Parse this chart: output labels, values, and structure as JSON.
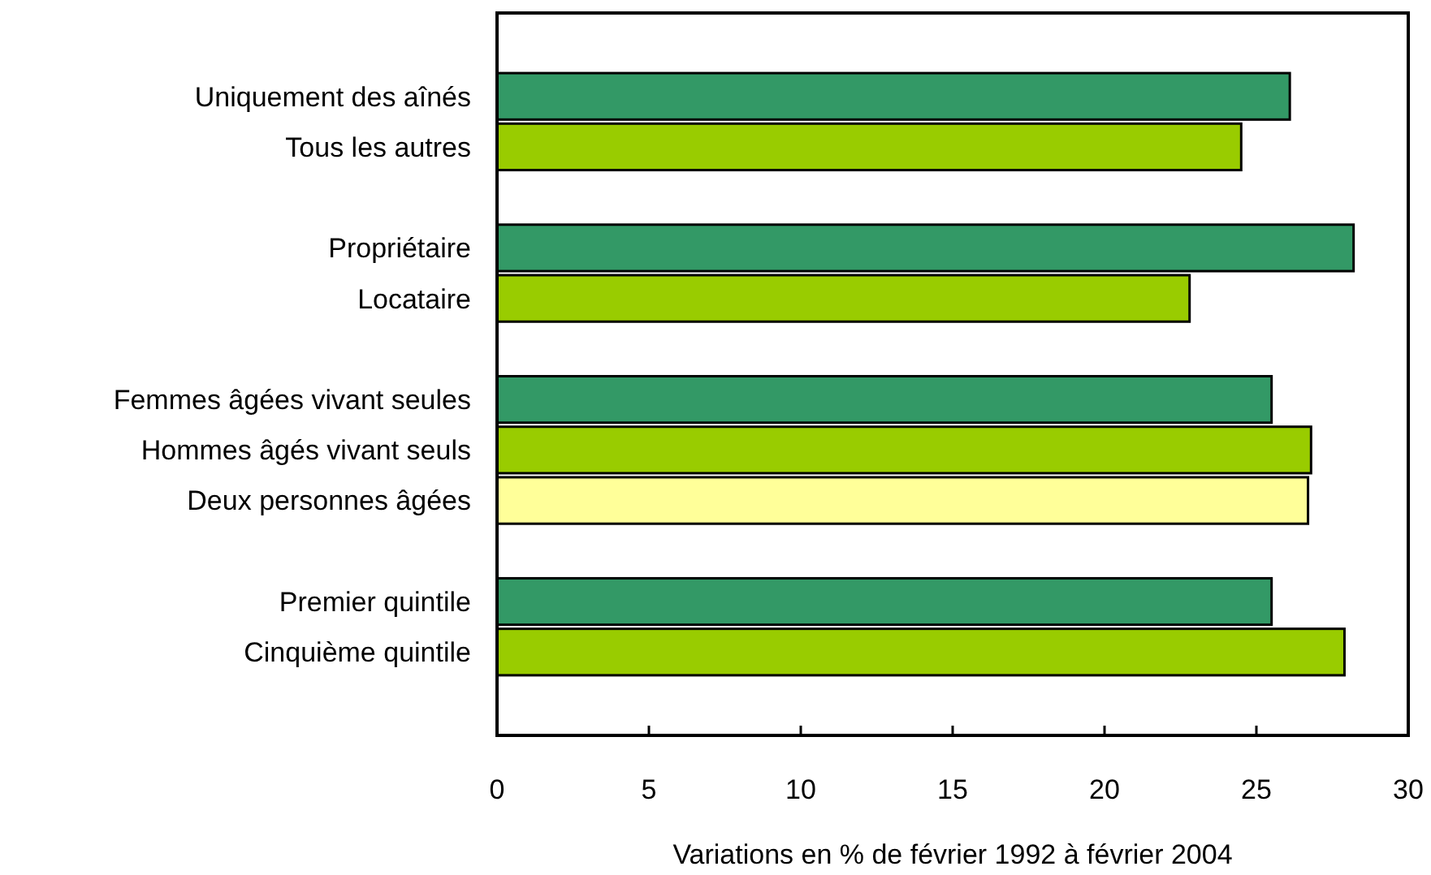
{
  "chart_data": {
    "type": "bar",
    "orientation": "horizontal",
    "xlabel": "Variations en % de février 1992 à février 2004",
    "categories": [
      "Uniquement des aînés",
      "Tous les autres",
      null,
      "Propriétaire",
      "Locataire",
      null,
      "Femmes âgées vivant seules",
      "Hommes âgés vivant seuls",
      "Deux personnes âgées",
      null,
      "Premier quintile",
      "Cinquième quintile"
    ],
    "values": [
      26.1,
      24.5,
      null,
      28.2,
      22.8,
      null,
      25.5,
      26.8,
      26.7,
      null,
      25.5,
      27.9
    ],
    "colors": [
      "#339966",
      "#99cc00",
      null,
      "#339966",
      "#99cc00",
      null,
      "#339966",
      "#99cc00",
      "#ffff99",
      null,
      "#339966",
      "#99cc00"
    ],
    "xlim": [
      0,
      30
    ],
    "xticks": [
      0,
      5,
      10,
      15,
      20,
      25,
      30
    ],
    "grid": false
  }
}
